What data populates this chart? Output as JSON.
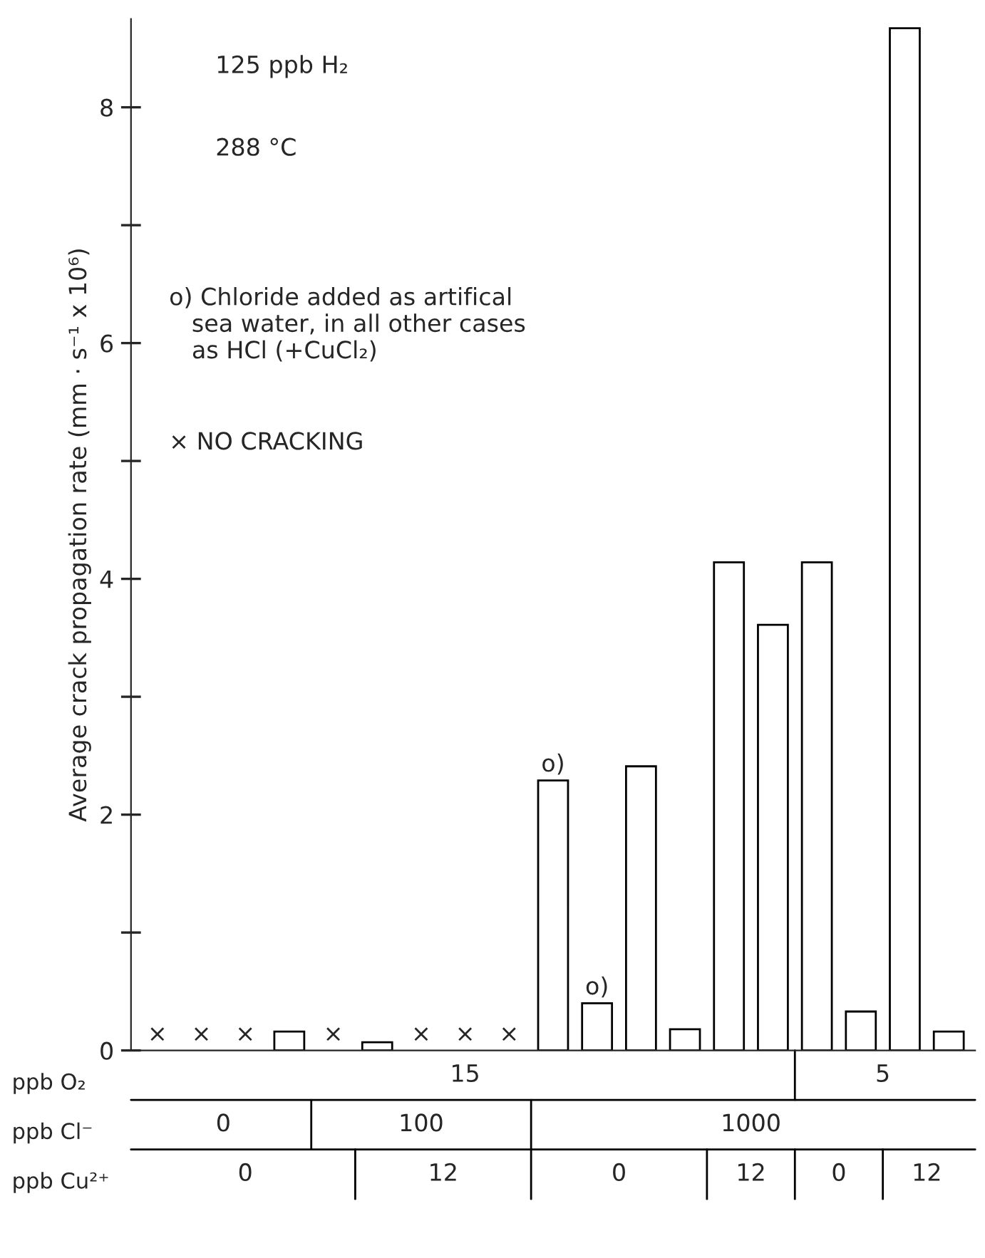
{
  "chart_data": {
    "type": "bar",
    "ylabel": "Average crack propagation rate (mm · s⁻¹ x 10⁶)",
    "categories": [
      null,
      null,
      null,
      null,
      null,
      null,
      null,
      null,
      null,
      null,
      null,
      null,
      null,
      null,
      null,
      null,
      null,
      null,
      null
    ],
    "ylim": [
      0,
      8.75
    ],
    "yticks": [
      0,
      {
        "value": 1,
        "label": null
      },
      2,
      {
        "value": 3,
        "label": null
      },
      4,
      {
        "value": 5,
        "label": null
      },
      6,
      {
        "value": 7,
        "label": null
      },
      8
    ],
    "tick_labels": "y",
    "series": [
      {
        "color": "#ffffff",
        "values": [
          0,
          0,
          0,
          0.16,
          0,
          0.07,
          0,
          0,
          0,
          2.29,
          0.4,
          2.41,
          0.18,
          4.14,
          3.61,
          4.14,
          0.33,
          8.67,
          0.16
        ],
        "value_labels": [
          "×",
          "×",
          "×",
          null,
          "×",
          null,
          "×",
          "×",
          "×",
          "o)",
          "o)",
          null,
          null,
          null,
          null,
          null,
          null,
          null,
          null
        ]
      }
    ],
    "annotations": [
      "125 ppb H₂",
      "288 °C",
      "o) Chloride added as artifical\n   sea water, in all other cases\n   as HCl (+CuCl₂)",
      "× NO CRACKING",
      "ppb O₂",
      "15",
      "5",
      "ppb Cl⁻",
      "0",
      "100",
      "1000",
      "ppb Cu²⁺",
      "0",
      "12",
      "0",
      "12",
      "0",
      "12"
    ]
  }
}
